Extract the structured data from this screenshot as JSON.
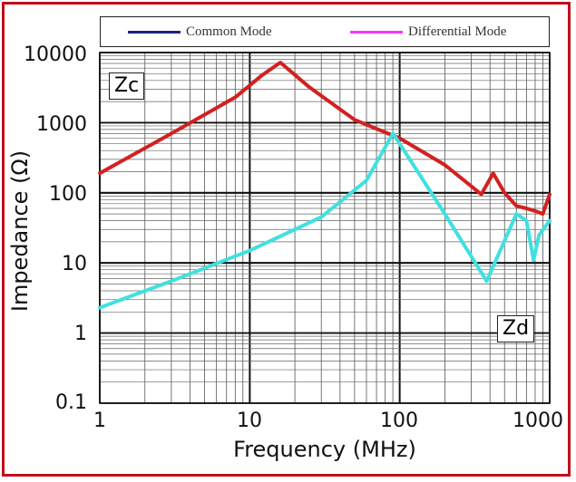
{
  "legend": [
    {
      "name": "Common Mode",
      "color": "#1a237e"
    },
    {
      "name": "Differential Mode",
      "color": "#ff33ff"
    }
  ],
  "labels": {
    "zc": "Zc",
    "zd": "Zd"
  },
  "colors": {
    "frame": "#c0101a",
    "common_curve": "#d32020",
    "differential_curve": "#40e0e0"
  },
  "chart_data": {
    "type": "line",
    "xlabel": "Frequency (MHz)",
    "ylabel": "Impedance (Ω)",
    "x_scale": "log",
    "y_scale": "log",
    "xlim": [
      1,
      1000
    ],
    "ylim": [
      0.1,
      10000
    ],
    "x_ticks": [
      "1",
      "10",
      "100",
      "1000"
    ],
    "y_ticks": [
      "10000",
      "1000",
      "100",
      "10",
      "1",
      "0.1"
    ],
    "grid": true,
    "series": [
      {
        "name": "Zc",
        "color": "#d32020",
        "x": [
          1,
          3,
          8,
          12,
          16,
          25,
          50,
          100,
          200,
          350,
          420,
          500,
          600,
          700,
          800,
          900,
          1000
        ],
        "y": [
          190,
          700,
          2300,
          4700,
          7200,
          3200,
          1100,
          600,
          250,
          95,
          190,
          100,
          65,
          60,
          55,
          50,
          95
        ]
      },
      {
        "name": "Zd",
        "color": "#40e0e0",
        "x": [
          1,
          3,
          10,
          30,
          60,
          90,
          100,
          200,
          380,
          600,
          700,
          780,
          850,
          1000
        ],
        "y": [
          2.3,
          5.5,
          15,
          45,
          150,
          700,
          500,
          50,
          5.5,
          50,
          40,
          11,
          25,
          40
        ]
      }
    ]
  }
}
